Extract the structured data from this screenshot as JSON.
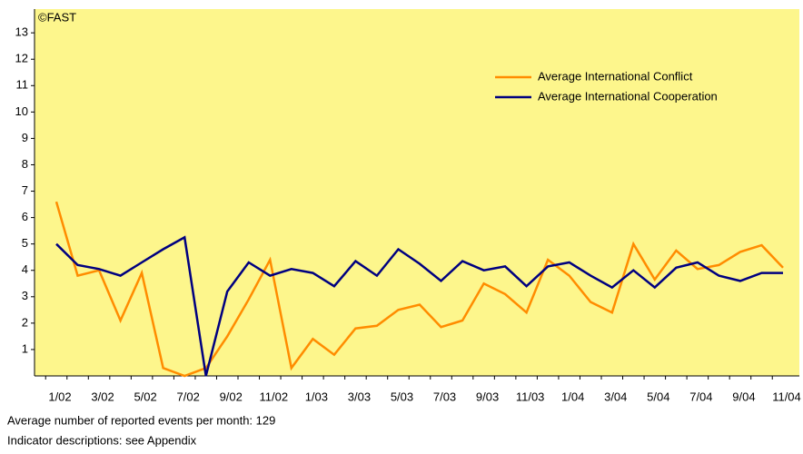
{
  "chart_data": {
    "type": "line",
    "annotation": "©FAST",
    "notes": [
      "Average number of reported events per month: 129",
      "Indicator descriptions: see Appendix"
    ],
    "categories": [
      "1/02",
      null,
      "3/02",
      null,
      "5/02",
      null,
      "7/02",
      null,
      "9/02",
      null,
      "11/02",
      null,
      "1/03",
      null,
      "3/03",
      null,
      "5/03",
      null,
      "7/03",
      null,
      "9/03",
      null,
      "11/03",
      null,
      "1/04",
      null,
      "3/04",
      null,
      "5/04",
      null,
      "7/04",
      null,
      "9/04",
      null,
      "11/04"
    ],
    "series": [
      {
        "name": "Average International Conflict",
        "color": "#ff8c00",
        "values": [
          6.6,
          3.8,
          4.0,
          2.1,
          3.9,
          0.3,
          0.0,
          0.3,
          1.5,
          2.9,
          4.4,
          0.3,
          1.4,
          0.8,
          1.8,
          1.9,
          2.5,
          2.7,
          1.85,
          2.1,
          3.5,
          3.1,
          2.4,
          4.4,
          3.8,
          2.8,
          2.4,
          5.0,
          3.65,
          4.75,
          4.05,
          4.2,
          4.7,
          4.95,
          4.1
        ]
      },
      {
        "name": "Average International Cooperation",
        "color": "#000080",
        "values": [
          5.0,
          4.2,
          4.05,
          3.8,
          4.3,
          4.8,
          5.25,
          0.0,
          3.2,
          4.3,
          3.8,
          4.05,
          3.9,
          3.4,
          4.35,
          3.8,
          4.8,
          4.25,
          3.6,
          4.35,
          4.0,
          4.15,
          3.4,
          4.15,
          4.3,
          3.8,
          3.35,
          4.0,
          3.35,
          4.1,
          4.3,
          3.8,
          3.6,
          3.9,
          3.9
        ]
      }
    ],
    "ylim": [
      0,
      13.9
    ],
    "yticks": [
      1,
      2,
      3,
      4,
      5,
      6,
      7,
      8,
      9,
      10,
      11,
      12,
      13
    ],
    "background": "#fdf68c"
  }
}
